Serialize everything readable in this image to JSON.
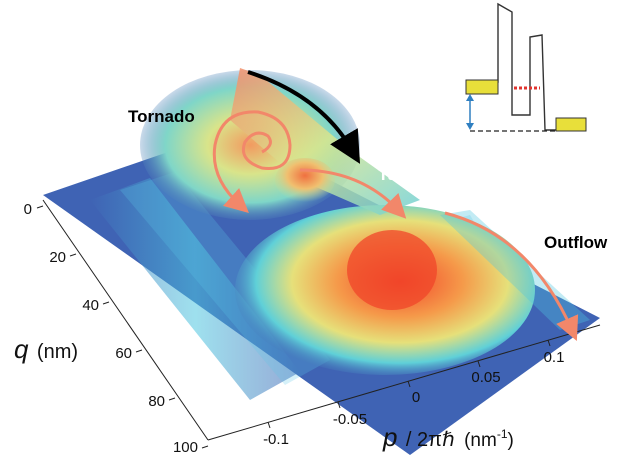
{
  "figure": {
    "annotations": {
      "tornado": "Tornado",
      "tunneling": "Tunneling",
      "outflow": "Outflow"
    },
    "q_axis": {
      "symbol": "q",
      "unit": "(nm)",
      "ticks": [
        "0",
        "20",
        "40",
        "60",
        "80",
        "100"
      ]
    },
    "p_axis": {
      "symbol": "p",
      "divisor": "/ 2πℏ",
      "unit": "(nm",
      "unit_exp": "-1",
      "unit_close": ")",
      "ticks": [
        "-0.1",
        "-0.05",
        "0",
        "0.05",
        "0.1"
      ]
    },
    "colors": {
      "background_surface": "#3f63b4",
      "peak": "#f04a2a",
      "arrow_orange": "#f2876a",
      "arrow_black": "#000000",
      "tunneling_text": "#ffffff",
      "barrier_fill": "#e8df3a",
      "barrier_level": "#e0342f",
      "inset_arrow": "#2f7fc1"
    }
  }
}
